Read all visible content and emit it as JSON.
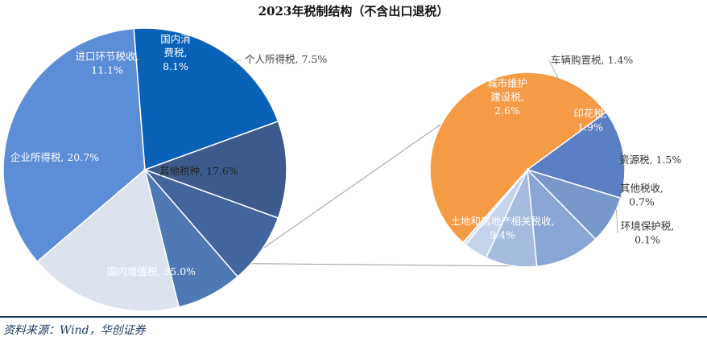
{
  "chart_data": [
    {
      "type": "pie",
      "title": "2023年税制结构（不含出口退税）",
      "slices": [
        {
          "label": "国内增值税",
          "value": 35.0,
          "display": "国内增值税, 35.0%",
          "color": "#5b8ed6"
        },
        {
          "label": "企业所得税",
          "value": 20.7,
          "display": "企业所得税, 20.7%",
          "color": "#0a62b8"
        },
        {
          "label": "进口环节税收",
          "value": 11.1,
          "display": "进口环节税收, 11.1%",
          "color": "#3c5b8c"
        },
        {
          "label": "国内消费税",
          "value": 8.1,
          "display": "国内消费税, 8.1%",
          "color": "#41659c"
        },
        {
          "label": "个人所得税",
          "value": 7.5,
          "display": "个人所得税, 7.5%",
          "color": "#4f79b4"
        },
        {
          "label": "其他税种",
          "value": 17.6,
          "display": "其他税种, 17.6%",
          "color": "#dce3ef"
        }
      ]
    },
    {
      "type": "pie",
      "title": "",
      "slices": [
        {
          "label": "土地和房地产相关税收",
          "value": 9.4,
          "display": "土地和房地产相关税收, 9.4%",
          "color": "#f59a45"
        },
        {
          "label": "城市维护建设税",
          "value": 2.6,
          "display": "城市维护建设税, 2.6%",
          "color": "#5b7fc4"
        },
        {
          "label": "车辆购置税",
          "value": 1.4,
          "display": "车辆购置税, 1.4%",
          "color": "#7898cc"
        },
        {
          "label": "印花税",
          "value": 1.9,
          "display": "印花税, 1.9%",
          "color": "#8aa6d6"
        },
        {
          "label": "资源税",
          "value": 1.5,
          "display": "资源税, 1.5%",
          "color": "#a6bbe0"
        },
        {
          "label": "其他税收",
          "value": 0.7,
          "display": "其他税收, 0.7%",
          "color": "#c5d3ec"
        },
        {
          "label": "环境保护税",
          "value": 0.1,
          "display": "环境保护税, 0.1%",
          "color": "#dce4f3"
        }
      ]
    }
  ],
  "source": "资料来源：Wind，华创证券"
}
